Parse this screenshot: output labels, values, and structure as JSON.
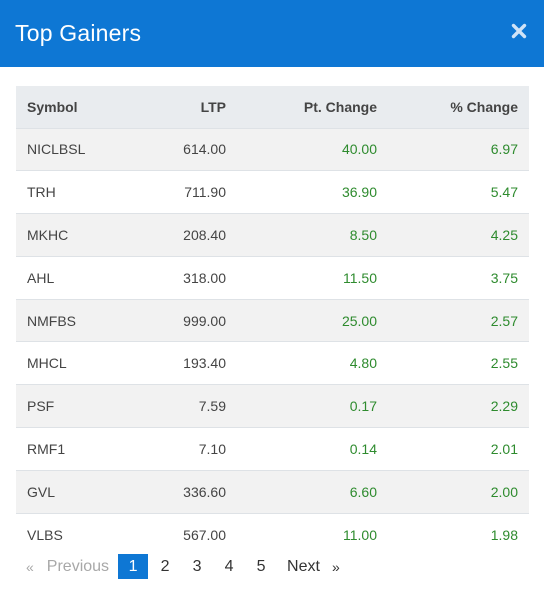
{
  "modal": {
    "title": "Top Gainers",
    "close_icon": "close-icon"
  },
  "colors": {
    "header_bg": "#0e77d4",
    "positive": "#2e8b2e",
    "active_page": "#0e77d4"
  },
  "table": {
    "headers": {
      "symbol": "Symbol",
      "ltp": "LTP",
      "pt_change": "Pt. Change",
      "pct_change": "% Change"
    },
    "rows": [
      {
        "symbol": "NICLBSL",
        "ltp": "614.00",
        "pt_change": "40.00",
        "pct_change": "6.97"
      },
      {
        "symbol": "TRH",
        "ltp": "711.90",
        "pt_change": "36.90",
        "pct_change": "5.47"
      },
      {
        "symbol": "MKHC",
        "ltp": "208.40",
        "pt_change": "8.50",
        "pct_change": "4.25"
      },
      {
        "symbol": "AHL",
        "ltp": "318.00",
        "pt_change": "11.50",
        "pct_change": "3.75"
      },
      {
        "symbol": "NMFBS",
        "ltp": "999.00",
        "pt_change": "25.00",
        "pct_change": "2.57"
      },
      {
        "symbol": "MHCL",
        "ltp": "193.40",
        "pt_change": "4.80",
        "pct_change": "2.55"
      },
      {
        "symbol": "PSF",
        "ltp": "7.59",
        "pt_change": "0.17",
        "pct_change": "2.29"
      },
      {
        "symbol": "RMF1",
        "ltp": "7.10",
        "pt_change": "0.14",
        "pct_change": "2.01"
      },
      {
        "symbol": "GVL",
        "ltp": "336.60",
        "pt_change": "6.60",
        "pct_change": "2.00"
      },
      {
        "symbol": "VLBS",
        "ltp": "567.00",
        "pt_change": "11.00",
        "pct_change": "1.98"
      }
    ]
  },
  "pagination": {
    "prev_arrow": "«",
    "prev_label": "Previous",
    "pages": [
      "1",
      "2",
      "3",
      "4",
      "5"
    ],
    "active_page": "1",
    "next_label": "Next",
    "next_arrow": "»"
  }
}
